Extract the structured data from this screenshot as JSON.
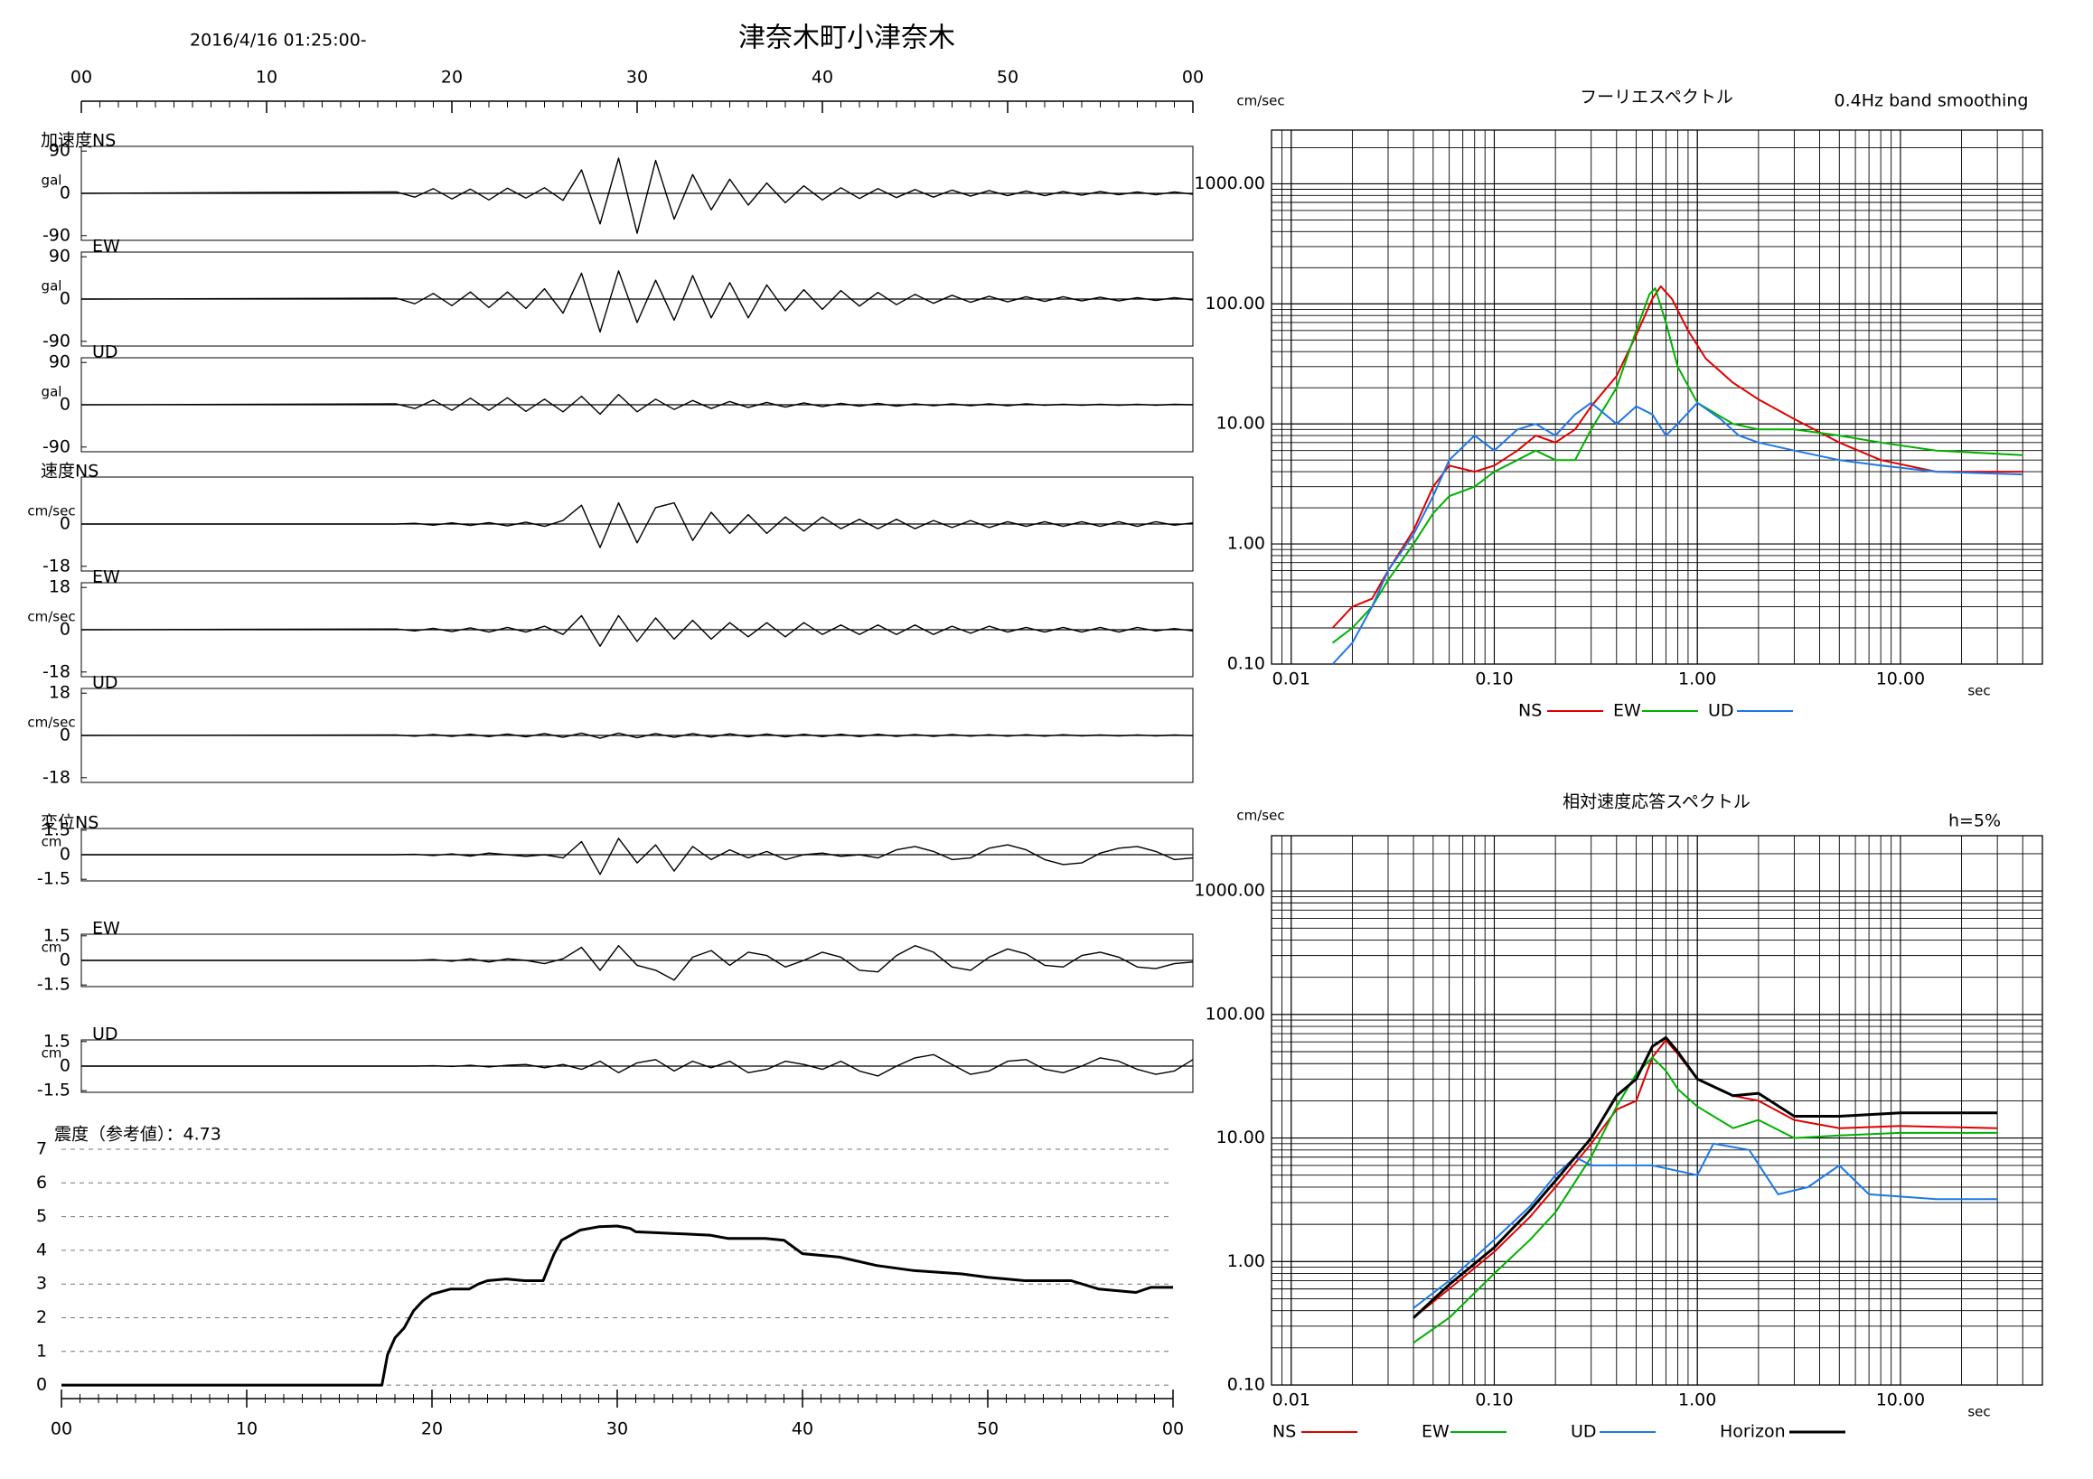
{
  "chart_data": [
    {
      "type": "waveform",
      "title": "津奈木町小津奈木",
      "start_time": "2016/4/16 01:25:00-",
      "xlim": [
        0,
        60
      ],
      "xticks": [
        {
          "value": 0,
          "label": "00"
        },
        10,
        20,
        30,
        40,
        50,
        {
          "value": 60,
          "label": "00"
        }
      ],
      "x": [
        0,
        17,
        18,
        19,
        20,
        21,
        22,
        23,
        24,
        25,
        26,
        27,
        28,
        29,
        30,
        31,
        32,
        33,
        34,
        35,
        36,
        37,
        38,
        39,
        40,
        41,
        42,
        43,
        44,
        45,
        46,
        47,
        48,
        49,
        50,
        51,
        52,
        53,
        54,
        55,
        56,
        57,
        58,
        59,
        60
      ],
      "series": [
        {
          "name": "加速度NS",
          "unit": "gal",
          "color": "#000000",
          "ylim": [
            -100,
            100
          ],
          "yticks": [
            90,
            0,
            -90
          ],
          "values": [
            0,
            3,
            -8,
            10,
            -12,
            9,
            -14,
            11,
            -10,
            12,
            -15,
            50,
            -65,
            75,
            -85,
            70,
            -55,
            40,
            -35,
            30,
            -25,
            22,
            -20,
            16,
            -14,
            12,
            -11,
            10,
            -9,
            8,
            -8,
            7,
            -6,
            6,
            -5,
            5,
            -5,
            4,
            -4,
            4,
            -3,
            3,
            -3,
            3,
            -2
          ]
        },
        {
          "name": "EW",
          "unit": "gal",
          "color": "#000000",
          "ylim": [
            -100,
            100
          ],
          "yticks": [
            90,
            0,
            -90
          ],
          "values": [
            0,
            2,
            -10,
            12,
            -14,
            15,
            -18,
            15,
            -20,
            22,
            -30,
            55,
            -70,
            60,
            -50,
            40,
            -45,
            50,
            -40,
            35,
            -40,
            30,
            -25,
            20,
            -22,
            18,
            -15,
            14,
            -12,
            10,
            -9,
            8,
            -7,
            6,
            -6,
            5,
            -5,
            5,
            -4,
            4,
            -4,
            3,
            -3,
            3,
            -2
          ]
        },
        {
          "name": "UD",
          "unit": "gal",
          "color": "#000000",
          "ylim": [
            -100,
            100
          ],
          "yticks": [
            90,
            0,
            -90
          ],
          "values": [
            0,
            2,
            -8,
            10,
            -12,
            14,
            -12,
            15,
            -14,
            12,
            -15,
            18,
            -20,
            22,
            -15,
            12,
            -10,
            9,
            -8,
            7,
            -6,
            5,
            -5,
            4,
            -4,
            3,
            -3,
            3,
            -3,
            2,
            -2,
            2,
            -2,
            2,
            -2,
            2,
            -1,
            1,
            -1,
            1,
            -1,
            1,
            -1,
            1,
            0
          ]
        },
        {
          "name": "速度NS",
          "unit": "cm/sec",
          "color": "#000000",
          "ylim": [
            -20,
            20
          ],
          "yticks": [
            0,
            -18
          ],
          "values": [
            0,
            0,
            0.3,
            -0.5,
            0.5,
            -0.6,
            0.6,
            -0.8,
            0.8,
            -1,
            1.5,
            8,
            -10,
            9,
            -8,
            7,
            9,
            -7,
            5,
            -4,
            4,
            -4,
            3,
            -3,
            3,
            -2,
            2,
            -2,
            2,
            -2,
            1.5,
            -1.5,
            1.5,
            -1.5,
            1,
            -1,
            1,
            -1,
            1,
            -1,
            1,
            -1,
            1,
            -0.5,
            0.5
          ]
        },
        {
          "name": "EW",
          "unit": "cm/sec",
          "color": "#000000",
          "ylim": [
            -20,
            20
          ],
          "yticks": [
            18,
            0,
            -18
          ],
          "values": [
            0,
            0.3,
            -0.5,
            0.6,
            -0.8,
            0.8,
            -1,
            1,
            -1,
            1.5,
            -2,
            6,
            -7,
            6,
            -5,
            5,
            -4,
            4,
            -4,
            3,
            -3,
            3,
            -3,
            3,
            -2,
            2,
            -2,
            2,
            -2,
            2,
            -2,
            1.5,
            -1.5,
            1.5,
            -1,
            1,
            -1,
            1,
            -1,
            1,
            -1,
            1,
            -0.5,
            0.5,
            -0.5
          ]
        },
        {
          "name": "UD",
          "unit": "cm/sec",
          "color": "#000000",
          "ylim": [
            -20,
            20
          ],
          "yticks": [
            18,
            0,
            -18
          ],
          "values": [
            0,
            0.2,
            -0.3,
            0.4,
            -0.4,
            0.5,
            -0.5,
            0.6,
            -0.6,
            0.8,
            -0.8,
            1,
            -1.2,
            1,
            -1,
            0.8,
            -0.8,
            0.8,
            -0.7,
            0.7,
            -0.6,
            0.6,
            -0.6,
            0.5,
            -0.5,
            0.5,
            -0.5,
            0.5,
            -0.4,
            0.4,
            -0.4,
            0.4,
            -0.3,
            0.3,
            -0.3,
            0.3,
            -0.3,
            0.3,
            -0.2,
            0.2,
            -0.2,
            0.2,
            -0.2,
            0.2,
            -0.1
          ]
        },
        {
          "name": "変位NS",
          "unit": "cm",
          "color": "#000000",
          "ylim": [
            -1.6,
            1.6
          ],
          "yticks": [
            1.5,
            0,
            -1.5
          ],
          "values": [
            0,
            0,
            0.02,
            -0.05,
            0.05,
            -0.08,
            0.1,
            0,
            -0.1,
            0,
            -0.2,
            0.8,
            -1.2,
            1.0,
            -0.5,
            0.6,
            -1.0,
            0.5,
            -0.3,
            0.3,
            -0.2,
            0.2,
            -0.3,
            0,
            0.1,
            -0.1,
            0,
            -0.2,
            0.3,
            0.5,
            0.2,
            -0.3,
            -0.2,
            0.4,
            0.6,
            0.3,
            -0.3,
            -0.6,
            -0.5,
            0.1,
            0.4,
            0.5,
            0.2,
            -0.3,
            -0.2
          ]
        },
        {
          "name": "EW",
          "unit": "cm",
          "color": "#000000",
          "ylim": [
            -1.6,
            1.6
          ],
          "yticks": [
            1.5,
            0,
            -1.5
          ],
          "values": [
            0,
            0,
            0,
            0.05,
            -0.05,
            0.1,
            -0.1,
            0.1,
            0,
            -0.2,
            0.1,
            0.8,
            -0.6,
            0.9,
            -0.3,
            -0.6,
            -1.2,
            0.2,
            0.6,
            -0.3,
            0.5,
            0.3,
            -0.4,
            0,
            0.5,
            0.2,
            -0.6,
            -0.7,
            0.3,
            0.9,
            0.5,
            -0.4,
            -0.6,
            0.2,
            0.7,
            0.4,
            -0.3,
            -0.4,
            0.3,
            0.5,
            0.2,
            -0.4,
            -0.5,
            -0.2,
            -0.1
          ]
        },
        {
          "name": "UD",
          "unit": "cm",
          "color": "#000000",
          "ylim": [
            -1.6,
            1.6
          ],
          "yticks": [
            1.5,
            0,
            -1.5
          ],
          "values": [
            0,
            0,
            0,
            0.02,
            -0.02,
            0.05,
            -0.05,
            0.05,
            0.1,
            -0.1,
            0.1,
            -0.2,
            0.3,
            -0.4,
            0.2,
            0.4,
            -0.3,
            0.3,
            -0.1,
            0.3,
            -0.4,
            -0.2,
            0.3,
            0.1,
            -0.2,
            0.3,
            -0.3,
            -0.6,
            0,
            0.5,
            0.7,
            0.1,
            -0.5,
            -0.3,
            0.3,
            0.4,
            -0.2,
            -0.4,
            0,
            0.5,
            0.3,
            -0.2,
            -0.5,
            -0.3,
            0.4
          ]
        }
      ]
    },
    {
      "type": "line",
      "title": "震度（参考値）：4.73",
      "color": "#000000",
      "xlim": [
        0,
        60
      ],
      "xticks": [
        {
          "value": 0,
          "label": "00"
        },
        10,
        20,
        30,
        40,
        50,
        {
          "value": 60,
          "label": "00"
        }
      ],
      "ylim": [
        -0.4,
        7
      ],
      "yticks": [
        0,
        1,
        2,
        3,
        4,
        5,
        6,
        7
      ],
      "grid": true,
      "x": [
        0,
        17.3,
        17.6,
        18,
        18.5,
        19,
        19.5,
        20,
        21,
        22,
        22.5,
        23,
        24,
        25,
        26,
        26.3,
        26.6,
        27,
        28,
        29,
        30,
        30.7,
        31,
        33,
        35,
        36,
        38,
        39,
        40,
        42,
        44,
        46,
        48.6,
        50,
        52,
        54.5,
        56,
        58,
        58.8,
        60
      ],
      "values": [
        0,
        0,
        0.9,
        1.4,
        1.7,
        2.2,
        2.5,
        2.7,
        2.85,
        2.85,
        3.0,
        3.1,
        3.15,
        3.1,
        3.1,
        3.5,
        3.9,
        4.3,
        4.6,
        4.7,
        4.72,
        4.65,
        4.55,
        4.5,
        4.45,
        4.35,
        4.35,
        4.3,
        3.9,
        3.8,
        3.55,
        3.4,
        3.3,
        3.2,
        3.1,
        3.1,
        2.85,
        2.75,
        2.9,
        2.9
      ]
    },
    {
      "type": "spectrum",
      "title": "フーリエスペクトル",
      "subtitle": "0.4Hz band smoothing",
      "ylabel": "cm/sec",
      "xlabel": "sec",
      "log_x": true,
      "log_y": true,
      "grid": true,
      "xlim": [
        0.008,
        50
      ],
      "ylim": [
        0.1,
        2800
      ],
      "xticks": [
        0.01,
        {
          "value": 0.1,
          "label": "0.10"
        },
        {
          "value": 1,
          "label": "1.00"
        },
        {
          "value": 10,
          "label": "10.00"
        }
      ],
      "yticks": [
        {
          "value": 0.1,
          "label": "0.10"
        },
        {
          "value": 1,
          "label": "1.00"
        },
        {
          "value": 10,
          "label": "10.00"
        },
        {
          "value": 100,
          "label": "100.00"
        },
        {
          "value": 1000,
          "label": "1000.00"
        }
      ],
      "series": [
        {
          "name": "NS",
          "color": "#e00000",
          "x": [
            0.016,
            0.02,
            0.025,
            0.03,
            0.04,
            0.05,
            0.06,
            0.08,
            0.1,
            0.13,
            0.16,
            0.2,
            0.25,
            0.3,
            0.4,
            0.5,
            0.6,
            0.66,
            0.75,
            0.9,
            1.1,
            1.5,
            2,
            3,
            5,
            8,
            15,
            40
          ],
          "values": [
            0.2,
            0.3,
            0.35,
            0.6,
            1.3,
            3,
            4.5,
            4,
            4.5,
            6,
            8,
            7,
            9,
            14,
            25,
            55,
            110,
            140,
            110,
            60,
            35,
            22,
            16,
            11,
            7,
            5,
            4,
            4
          ]
        },
        {
          "name": "EW",
          "color": "#00b000",
          "x": [
            0.016,
            0.02,
            0.025,
            0.03,
            0.04,
            0.05,
            0.06,
            0.08,
            0.1,
            0.13,
            0.16,
            0.2,
            0.25,
            0.3,
            0.4,
            0.5,
            0.58,
            0.62,
            0.7,
            0.8,
            1,
            1.5,
            2,
            3,
            5,
            8,
            15,
            40
          ],
          "values": [
            0.15,
            0.2,
            0.3,
            0.5,
            1,
            1.8,
            2.5,
            3,
            4,
            5,
            6,
            5,
            5,
            9,
            20,
            60,
            120,
            135,
            70,
            30,
            15,
            10,
            9,
            9,
            8,
            7,
            6,
            5.5
          ]
        },
        {
          "name": "UD",
          "color": "#1e78e6",
          "x": [
            0.016,
            0.02,
            0.025,
            0.03,
            0.04,
            0.05,
            0.06,
            0.08,
            0.1,
            0.13,
            0.16,
            0.2,
            0.25,
            0.3,
            0.4,
            0.5,
            0.6,
            0.7,
            0.8,
            1,
            1.3,
            1.6,
            2,
            3,
            5,
            8,
            15,
            40
          ],
          "values": [
            0.1,
            0.15,
            0.3,
            0.6,
            1.2,
            2.5,
            5,
            8,
            6,
            9,
            10,
            8,
            12,
            15,
            10,
            14,
            12,
            8,
            10,
            15,
            11,
            8,
            7,
            6,
            5,
            4.5,
            4,
            3.8
          ]
        }
      ]
    },
    {
      "type": "spectrum",
      "title": "相対速度応答スペクトル",
      "subtitle": "h=5%",
      "ylabel": "cm/sec",
      "xlabel": "sec",
      "log_x": true,
      "log_y": true,
      "grid": true,
      "xlim": [
        0.008,
        50
      ],
      "ylim": [
        0.1,
        2800
      ],
      "xticks": [
        0.01,
        {
          "value": 0.1,
          "label": "0.10"
        },
        {
          "value": 1,
          "label": "1.00"
        },
        {
          "value": 10,
          "label": "10.00"
        }
      ],
      "yticks": [
        {
          "value": 0.1,
          "label": "0.10"
        },
        {
          "value": 1,
          "label": "1.00"
        },
        {
          "value": 10,
          "label": "10.00"
        },
        {
          "value": 100,
          "label": "100.00"
        },
        {
          "value": 1000,
          "label": "1000.00"
        }
      ],
      "series": [
        {
          "name": "NS",
          "color": "#e00000",
          "x": [
            0.04,
            0.06,
            0.1,
            0.15,
            0.2,
            0.3,
            0.4,
            0.5,
            0.6,
            0.7,
            0.8,
            1,
            1.5,
            2,
            3,
            5,
            10,
            30
          ],
          "values": [
            0.35,
            0.6,
            1.2,
            2.3,
            4,
            9,
            17,
            20,
            45,
            62,
            48,
            30,
            22,
            20,
            14,
            12,
            12.5,
            12
          ]
        },
        {
          "name": "EW",
          "color": "#00b000",
          "x": [
            0.04,
            0.06,
            0.1,
            0.15,
            0.2,
            0.3,
            0.4,
            0.5,
            0.6,
            0.7,
            0.8,
            1,
            1.5,
            2,
            3,
            5,
            10,
            30
          ],
          "values": [
            0.22,
            0.35,
            0.8,
            1.5,
            2.5,
            7,
            18,
            33,
            45,
            35,
            25,
            18,
            12,
            14,
            10,
            10.5,
            11,
            11
          ]
        },
        {
          "name": "UD",
          "color": "#1e78e6",
          "x": [
            0.04,
            0.06,
            0.1,
            0.15,
            0.2,
            0.25,
            0.3,
            0.4,
            0.6,
            1,
            1.2,
            1.8,
            2.5,
            3.5,
            5,
            7,
            15,
            30
          ],
          "values": [
            0.42,
            0.7,
            1.5,
            2.8,
            5,
            7,
            6,
            6,
            6,
            5,
            9,
            8,
            3.5,
            4,
            6,
            3.5,
            3.2,
            3.2
          ]
        },
        {
          "name": "Horizon",
          "color": "#000000",
          "width": 3,
          "x": [
            0.04,
            0.06,
            0.1,
            0.15,
            0.2,
            0.3,
            0.4,
            0.5,
            0.6,
            0.7,
            0.8,
            1,
            1.5,
            2,
            3,
            5,
            10,
            30
          ],
          "values": [
            0.35,
            0.65,
            1.3,
            2.6,
            4.5,
            10,
            22,
            30,
            55,
            65,
            50,
            30,
            22,
            23,
            15,
            15,
            16,
            16
          ]
        }
      ]
    }
  ]
}
